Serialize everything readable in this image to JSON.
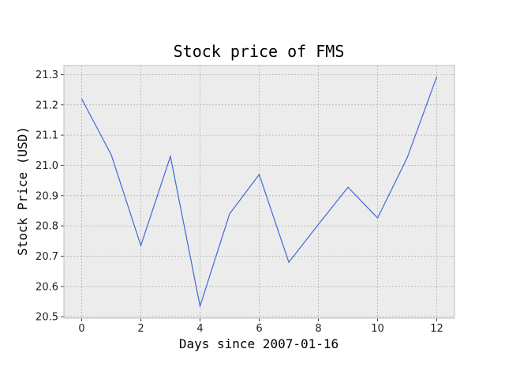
{
  "chart_data": {
    "type": "line",
    "title": "Stock price of FMS",
    "xlabel": "Days since 2007-01-16",
    "ylabel": "Stock Price (USD)",
    "xlim": [
      -0.6,
      12.6
    ],
    "ylim": [
      20.495,
      21.33
    ],
    "x_ticks": [
      0,
      2,
      4,
      6,
      8,
      10,
      12
    ],
    "y_ticks": [
      20.5,
      20.6,
      20.7,
      20.8,
      20.9,
      21.0,
      21.1,
      21.2,
      21.3
    ],
    "x_tick_labels": [
      "0",
      "2",
      "4",
      "6",
      "8",
      "10",
      "12"
    ],
    "y_tick_labels": [
      "20.5",
      "20.6",
      "20.7",
      "20.8",
      "20.9",
      "21.0",
      "21.1",
      "21.2",
      "21.3"
    ],
    "grid": true,
    "background_color": "#ececec",
    "line_color": "#4169d6",
    "series": [
      {
        "x": [
          0,
          1,
          2,
          3,
          4,
          5,
          6,
          7,
          8,
          9,
          10,
          11,
          12
        ],
        "values": [
          21.22,
          21.035,
          20.735,
          21.03,
          20.535,
          20.84,
          20.97,
          20.68,
          20.805,
          20.928,
          20.826,
          21.025,
          21.293
        ]
      }
    ]
  }
}
